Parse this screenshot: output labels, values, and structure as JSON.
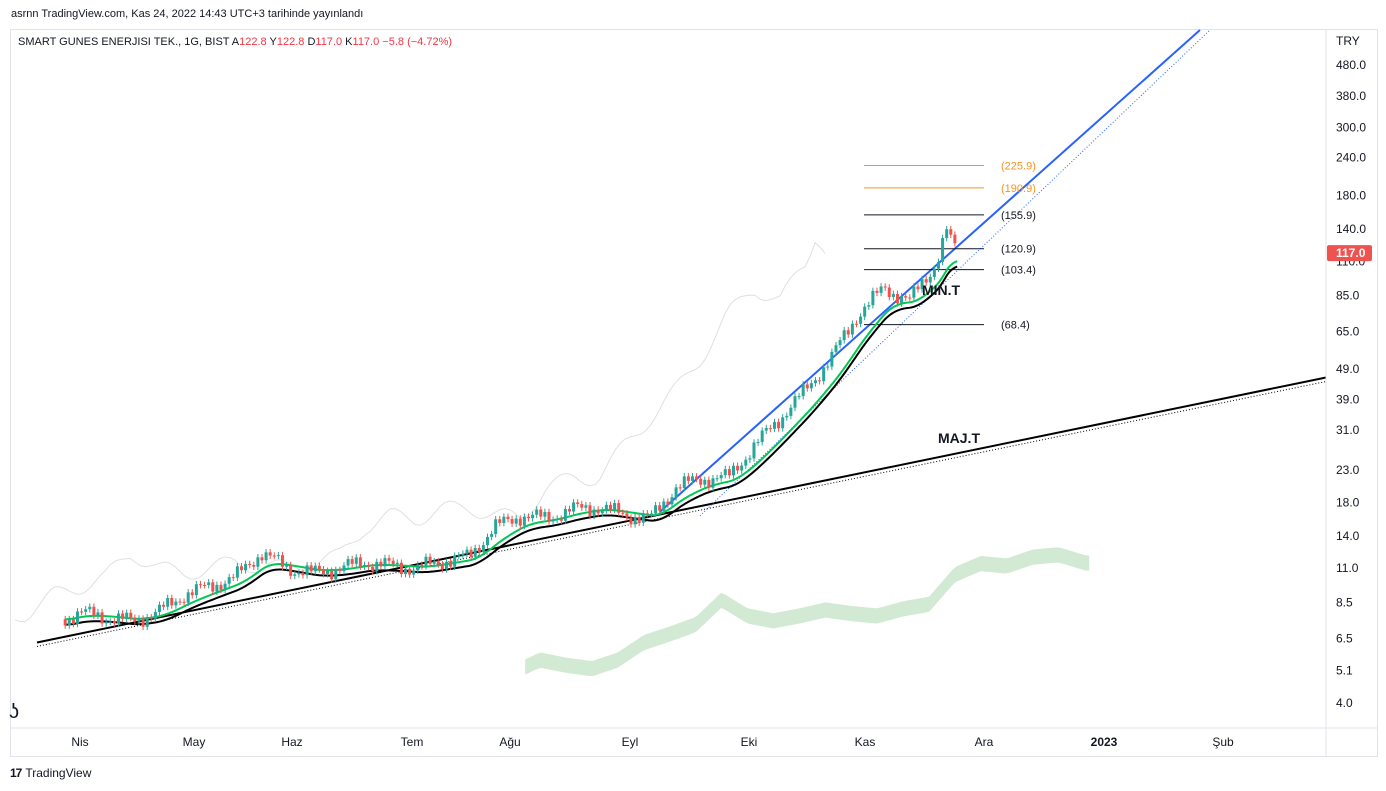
{
  "header": {
    "published": "asrnn TradingView.com, Kas 24, 2022 14:43 UTC+3 tarihinde yayınlandı"
  },
  "symbol": {
    "name": "SMART GUNES ENERJISI TEK., 1G, BIST",
    "open_label": "A",
    "open_value": "122.8",
    "high_label": "Y",
    "high_value": "122.8",
    "low_label": "D",
    "low_value": "117.0",
    "close_label": "K",
    "close_value": "117.0",
    "change": "−5.8 (−4.72%)"
  },
  "footer": {
    "brand": "TradingView",
    "logo": "17"
  },
  "colors": {
    "up": "#26a69a",
    "down": "#ef5350",
    "fib_orange": "#f7931a",
    "trend_blue": "#2962ff",
    "trend_black": "#000000",
    "cloud": "#a5d6a7",
    "ema_green": "#00c853",
    "ema_dark": "#4a148c",
    "last_price": "#ef5350"
  },
  "chart_data": {
    "type": "candlestick",
    "currency": "TRY",
    "y_scale": "log",
    "ylim": [
      3.5,
      560
    ],
    "y_ticks": [
      "480.0",
      "380.0",
      "300.0",
      "240.0",
      "180.0",
      "140.0",
      "110.0",
      "85.0",
      "65.0",
      "49.0",
      "39.0",
      "31.0",
      "23.0",
      "18.0",
      "14.0",
      "11.0",
      "8.5",
      "6.5",
      "5.1",
      "4.0"
    ],
    "x_ticks": [
      "Nis",
      "May",
      "Haz",
      "Tem",
      "Ağu",
      "Eyl",
      "Eki",
      "Kas",
      "Ara",
      "2023",
      "Şub"
    ],
    "last_price": "117.0",
    "fib_levels": [
      {
        "label": "(225.9)",
        "value": 225.9,
        "color": "orange"
      },
      {
        "label": "(190.9)",
        "value": 190.9,
        "color": "orange"
      },
      {
        "label": "(155.9)",
        "value": 155.9,
        "color": "black"
      },
      {
        "label": "(120.9)",
        "value": 120.9,
        "color": "black"
      },
      {
        "label": "(103.4)",
        "value": 103.4,
        "color": "black"
      },
      {
        "label": "(68.4)",
        "value": 68.4,
        "color": "black"
      }
    ],
    "annotations": [
      "MIN.T",
      "MAJ.T"
    ],
    "price_path": [
      [
        "2022-03-28",
        7.5
      ],
      [
        "2022-04-01",
        7.9
      ],
      [
        "2022-04-08",
        7.6
      ],
      [
        "2022-04-15",
        7.4
      ],
      [
        "2022-04-22",
        7.9
      ],
      [
        "2022-04-29",
        9.0
      ],
      [
        "2022-05-06",
        9.6
      ],
      [
        "2022-05-13",
        10.3
      ],
      [
        "2022-05-20",
        12.4
      ],
      [
        "2022-05-27",
        11.0
      ],
      [
        "2022-06-03",
        10.6
      ],
      [
        "2022-06-10",
        11.0
      ],
      [
        "2022-06-17",
        11.5
      ],
      [
        "2022-06-24",
        11.2
      ],
      [
        "2022-07-01",
        11.0
      ],
      [
        "2022-07-08",
        11.6
      ],
      [
        "2022-07-15",
        12.0
      ],
      [
        "2022-07-22",
        15.0
      ],
      [
        "2022-07-29",
        16.3
      ],
      [
        "2022-08-05",
        16.0
      ],
      [
        "2022-08-12",
        17.1
      ],
      [
        "2022-08-19",
        17.4
      ],
      [
        "2022-08-26",
        16.4
      ],
      [
        "2022-09-02",
        16.0
      ],
      [
        "2022-09-09",
        20.3
      ],
      [
        "2022-09-16",
        21.5
      ],
      [
        "2022-09-23",
        21.8
      ],
      [
        "2022-09-30",
        27.5
      ],
      [
        "2022-10-07",
        34.0
      ],
      [
        "2022-10-14",
        42.0
      ],
      [
        "2022-10-21",
        54.0
      ],
      [
        "2022-10-28",
        74.0
      ],
      [
        "2022-11-04",
        90.0
      ],
      [
        "2022-11-11",
        82.0
      ],
      [
        "2022-11-18",
        108.0
      ],
      [
        "2022-11-21",
        140.0
      ],
      [
        "2022-11-22",
        128.0
      ],
      [
        "2022-11-24",
        117.0
      ]
    ]
  }
}
